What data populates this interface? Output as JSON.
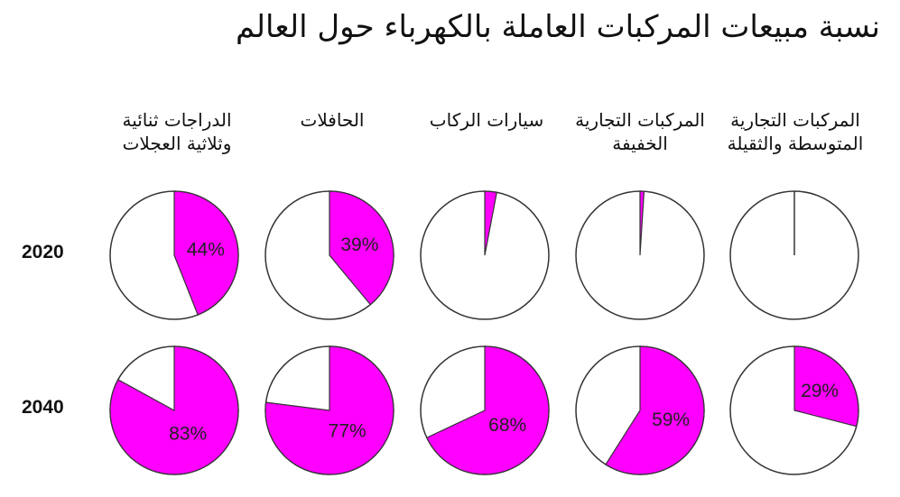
{
  "title": "نسبة مبيعات المركبات العاملة بالكهرباء حول العالم",
  "colors": {
    "accent": "#ff00ff",
    "empty": "#ffffff",
    "stroke": "#333333"
  },
  "chart_data": {
    "type": "pie",
    "title": "نسبة مبيعات المركبات العاملة بالكهرباء حول العالم",
    "categories": [
      "الدراجات ثنائية وثلاثية العجلات",
      "الحافلات",
      "سيارات الركاب",
      "المركبات التجارية الخفيفة",
      "المركبات التجارية المتوسطة والثقيلة"
    ],
    "rows": [
      "2020",
      "2040"
    ],
    "series": [
      {
        "values": [
          44,
          39,
          3,
          1,
          0
        ],
        "labels": [
          "44%",
          "39%",
          "",
          "",
          ""
        ]
      },
      {
        "values": [
          83,
          77,
          68,
          59,
          29
        ],
        "labels": [
          "83%",
          "77%",
          "68%",
          "59%",
          "29%"
        ]
      }
    ]
  }
}
